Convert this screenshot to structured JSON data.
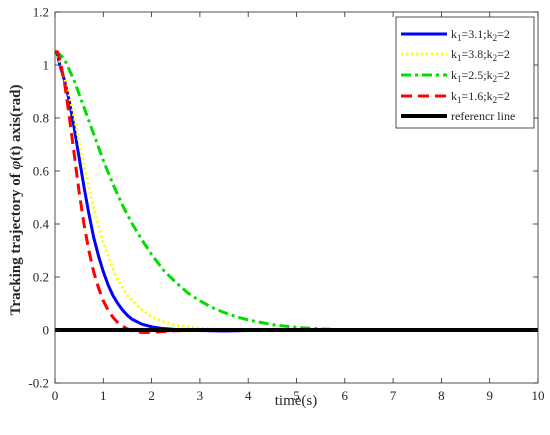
{
  "chart_data": {
    "type": "line",
    "xlabel": "time(s)",
    "ylabel": {
      "prefix": "Tracking trajectory of ",
      "symbol": "φ",
      "suffix": "(t) axis(rad)"
    },
    "xlim": [
      0,
      10
    ],
    "ylim": [
      -0.2,
      1.2
    ],
    "xticks": [
      0,
      1,
      2,
      3,
      4,
      5,
      6,
      7,
      8,
      9,
      10
    ],
    "xtick_labels": [
      "0",
      "1",
      "2",
      "3",
      "4",
      "5",
      "6",
      "7",
      "8",
      "9",
      "10"
    ],
    "yticks": [
      -0.2,
      0,
      0.2,
      0.4,
      0.6,
      0.8,
      1,
      1.2
    ],
    "ytick_labels": [
      "-0.2",
      "0",
      "0.2",
      "0.4",
      "0.6",
      "0.8",
      "1",
      "1.2"
    ],
    "grid": false,
    "legend_position": "top-right",
    "series": [
      {
        "name": "k1=3.1;k2=2",
        "label": {
          "a": "k",
          "a_sub": "1",
          "b": "=3.1;k",
          "b_sub": "2",
          "c": "=2"
        },
        "color": "#0000ff",
        "style": "solid",
        "x": [
          0,
          0.05,
          0.1,
          0.2,
          0.3,
          0.4,
          0.5,
          0.6,
          0.7,
          0.8,
          0.9,
          1.0,
          1.1,
          1.2,
          1.3,
          1.4,
          1.5,
          1.6,
          1.8,
          2.0,
          2.2,
          2.5,
          3.0,
          3.5,
          4.0,
          5.0,
          6.0,
          7.0,
          8.0,
          9.0,
          10.0
        ],
        "y": [
          1.05,
          1.04,
          1.0,
          0.94,
          0.86,
          0.76,
          0.65,
          0.54,
          0.44,
          0.35,
          0.28,
          0.22,
          0.17,
          0.13,
          0.1,
          0.075,
          0.055,
          0.04,
          0.022,
          0.012,
          0.006,
          0.002,
          -0.002,
          -0.004,
          -0.002,
          0.001,
          0.002,
          0.001,
          0.0,
          0.0,
          0.0
        ]
      },
      {
        "name": "k1=3.8;k2=2",
        "label": {
          "a": "k",
          "a_sub": "1",
          "b": "=3.8;k",
          "b_sub": "2",
          "c": "=2"
        },
        "color": "#ffff00",
        "style": "dotted",
        "x": [
          0,
          0.05,
          0.1,
          0.2,
          0.3,
          0.4,
          0.5,
          0.6,
          0.7,
          0.8,
          0.9,
          1.0,
          1.1,
          1.2,
          1.3,
          1.4,
          1.5,
          1.6,
          1.8,
          2.0,
          2.2,
          2.5,
          3.0,
          3.5,
          4.0,
          5.0,
          6.0,
          7.0,
          8.0,
          9.0,
          10.0
        ],
        "y": [
          1.05,
          1.04,
          1.01,
          0.95,
          0.88,
          0.8,
          0.71,
          0.62,
          0.54,
          0.46,
          0.39,
          0.33,
          0.28,
          0.23,
          0.19,
          0.16,
          0.13,
          0.11,
          0.075,
          0.05,
          0.034,
          0.018,
          0.006,
          0.001,
          -0.001,
          0.0,
          0.001,
          0.0,
          0.0,
          0.0,
          0.0
        ]
      },
      {
        "name": "k1=2.5;k2=2",
        "label": {
          "a": "k",
          "a_sub": "1",
          "b": "=2.5;k",
          "b_sub": "2",
          "c": "=2"
        },
        "color": "#00dd00",
        "style": "dashdot",
        "x": [
          0,
          0.1,
          0.2,
          0.3,
          0.4,
          0.5,
          0.6,
          0.7,
          0.8,
          0.9,
          1.0,
          1.2,
          1.4,
          1.6,
          1.8,
          2.0,
          2.25,
          2.5,
          2.75,
          3.0,
          3.25,
          3.5,
          3.75,
          4.0,
          4.5,
          5.0,
          5.5,
          6.0,
          7.0,
          8.0,
          9.0,
          10.0
        ],
        "y": [
          1.05,
          1.04,
          1.02,
          0.98,
          0.94,
          0.89,
          0.84,
          0.79,
          0.74,
          0.69,
          0.64,
          0.55,
          0.47,
          0.4,
          0.34,
          0.285,
          0.225,
          0.18,
          0.14,
          0.11,
          0.085,
          0.066,
          0.05,
          0.038,
          0.02,
          0.01,
          0.004,
          0.001,
          -0.001,
          0.0,
          0.0,
          0.0
        ]
      },
      {
        "name": "k1=1.6;k2=2",
        "label": {
          "a": "k",
          "a_sub": "1",
          "b": "=1.6;k",
          "b_sub": "2",
          "c": "=2"
        },
        "color": "#ff0000",
        "style": "dashed",
        "x": [
          0,
          0.05,
          0.1,
          0.2,
          0.3,
          0.4,
          0.5,
          0.6,
          0.7,
          0.8,
          0.9,
          1.0,
          1.1,
          1.2,
          1.3,
          1.4,
          1.5,
          1.6,
          1.7,
          1.8,
          2.0,
          2.2,
          2.5,
          3.0,
          3.5,
          4.0,
          5.0,
          6.0,
          7.0,
          8.0,
          9.0,
          10.0
        ],
        "y": [
          1.05,
          1.05,
          1.02,
          0.93,
          0.8,
          0.66,
          0.52,
          0.4,
          0.3,
          0.22,
          0.16,
          0.11,
          0.075,
          0.048,
          0.028,
          0.014,
          0.004,
          -0.003,
          -0.007,
          -0.009,
          -0.009,
          -0.006,
          -0.003,
          0.0,
          0.001,
          0.001,
          0.0,
          0.0,
          0.0,
          0.0,
          0.0,
          0.0
        ]
      },
      {
        "name": "referencr line",
        "label": {
          "text": "referencr line"
        },
        "color": "#000000",
        "style": "solid-thick",
        "x": [
          0,
          10
        ],
        "y": [
          0,
          0
        ]
      }
    ]
  }
}
